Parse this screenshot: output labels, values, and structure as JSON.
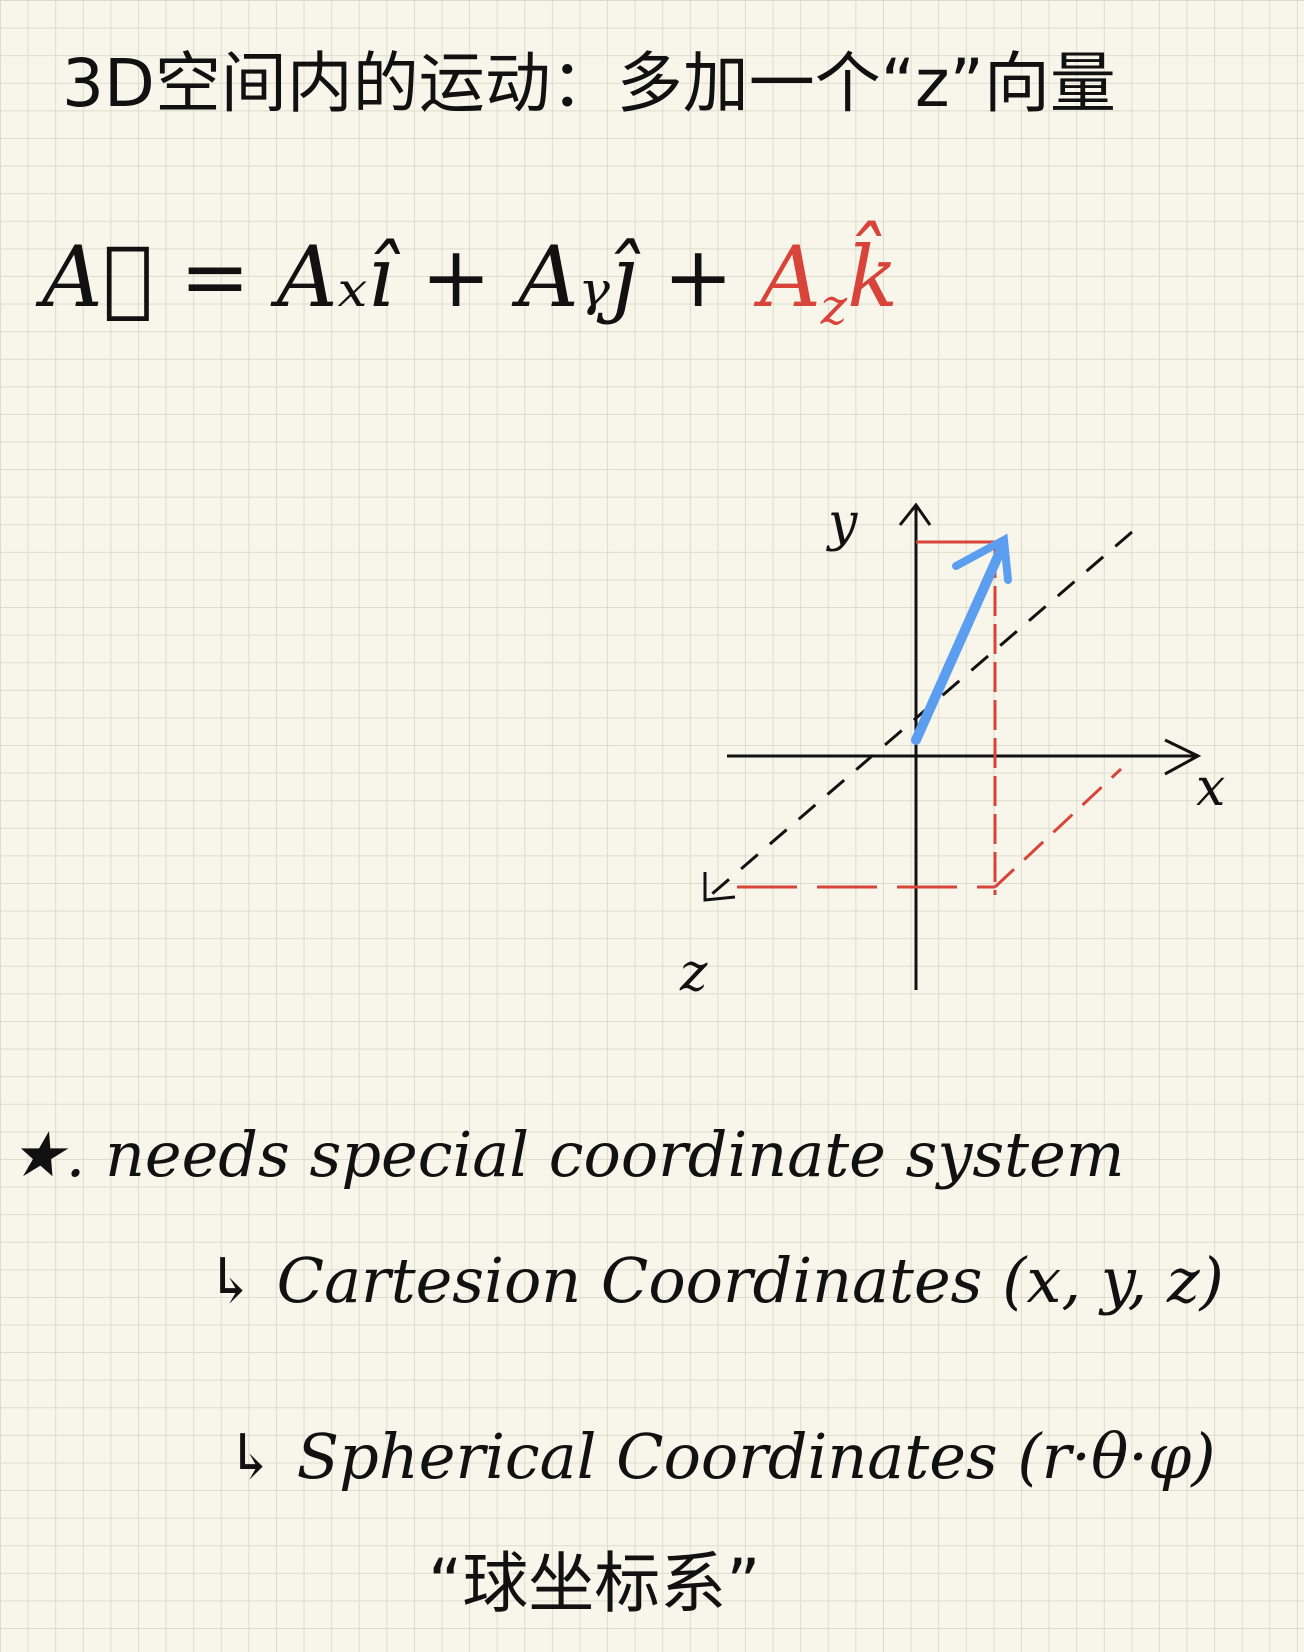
{
  "title": "3D空间内的运动：多加一个“z”向量",
  "equation": {
    "black": "A⃗ = Aₓî + Aᵧĵ +",
    "red": {
      "base": "A",
      "sub": "z",
      "unit": "k̂"
    }
  },
  "diagram": {
    "y_label": "y",
    "x_label": "x",
    "z_label": "z"
  },
  "notes": {
    "main": "★. needs special coordinate system",
    "cartesian": "↳ Cartesion Coordinates (x, y, z)",
    "spherical": "↳ Spherical Coordinates (r·θ·φ)",
    "spherical_cn": "“球坐标系”"
  }
}
